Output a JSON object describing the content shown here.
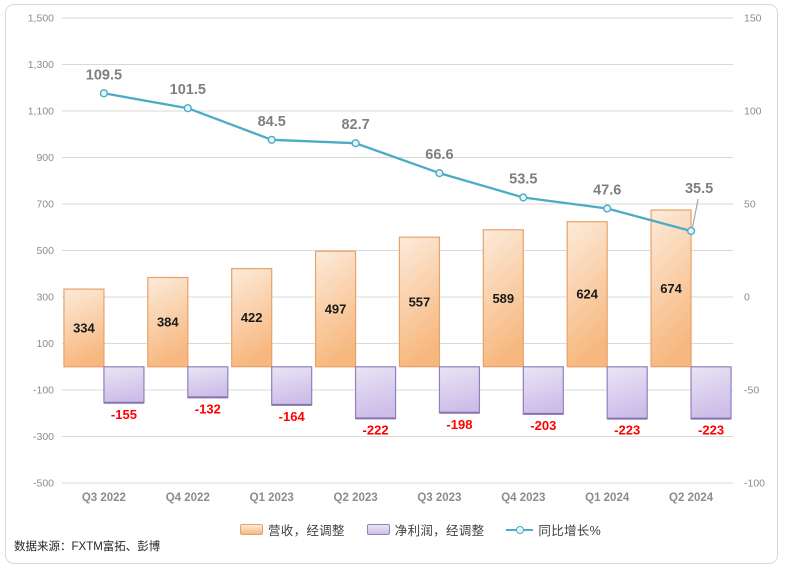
{
  "legend": {
    "items": [
      {
        "label": "营收，经调整",
        "series": "revenue"
      },
      {
        "label": "净利润，经调整",
        "series": "net_profit"
      },
      {
        "label": "同比增长%",
        "series": "yoy_growth"
      }
    ]
  },
  "source_note": "数据来源：FXTM富拓、彭博",
  "colors": {
    "revenue_fill_top": "#FCEBDB",
    "revenue_fill_bottom": "#F7B87F",
    "revenue_border": "#E8A268",
    "profit_fill_top": "#EAE5F5",
    "profit_fill_bottom": "#CDBEE9",
    "profit_border": "#9080BC",
    "growth_line": "#4BACC6",
    "marker_fill": "#EAF5F9",
    "positive_value_label": "#1a1a1a",
    "negative_value_label": "#FF0000",
    "line_value_label": "#7F7F7F",
    "axis_label": "#8C8C8C",
    "gridline": "#D9D9D9",
    "callout_line": "#A6A6A6"
  },
  "chart_data": {
    "type": "bar+line combo, dual axis",
    "categories": [
      "Q3 2022",
      "Q4 2022",
      "Q1 2023",
      "Q2 2023",
      "Q3 2023",
      "Q4 2023",
      "Q1 2024",
      "Q2 2024"
    ],
    "series": [
      {
        "name": "营收，经调整",
        "type": "bar",
        "axis": "left",
        "values": [
          334,
          384,
          422,
          497,
          557,
          589,
          624,
          674
        ]
      },
      {
        "name": "净利润，经调整",
        "type": "bar",
        "axis": "left",
        "values": [
          -155,
          -132,
          -164,
          -222,
          -198,
          -203,
          -223,
          -223
        ]
      },
      {
        "name": "同比增长%",
        "type": "line",
        "axis": "right",
        "values": [
          109.5,
          101.5,
          84.5,
          82.7,
          66.6,
          53.5,
          47.6,
          35.5
        ]
      }
    ],
    "left_axis": {
      "min": -500,
      "max": 1500,
      "step": 200,
      "ticks": [
        "1,500",
        "1,300",
        "1,100",
        "900",
        "700",
        "500",
        "300",
        "100",
        "-100",
        "-300",
        "-500"
      ]
    },
    "right_axis": {
      "min": -100,
      "max": 150,
      "step": 50,
      "ticks": [
        "150",
        "100",
        "50",
        "0",
        "-50",
        "-100"
      ]
    },
    "grid": true,
    "legend_position": "bottom",
    "title": "",
    "last_line_label_callout": true
  }
}
